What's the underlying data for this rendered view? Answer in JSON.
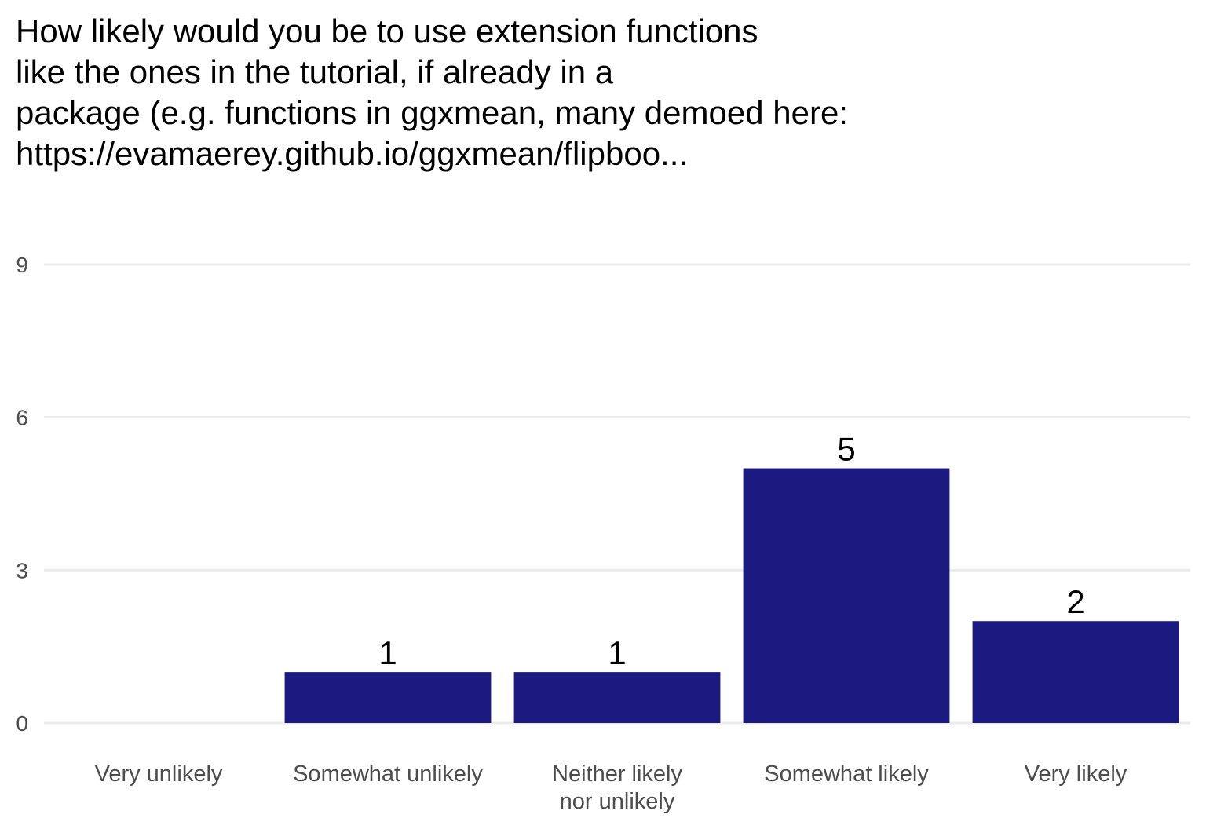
{
  "chart_data": {
    "type": "bar",
    "title_lines": [
      "How likely would you be to use extension functions",
      "like the ones in the tutorial, if already in a",
      "package (e.g. functions in ggxmean, many demoed here:",
      "https://evamaerey.github.io/ggxmean/flipboo..."
    ],
    "categories": [
      [
        "Very unlikely"
      ],
      [
        "Somewhat unlikely"
      ],
      [
        "Neither likely",
        "nor unlikely"
      ],
      [
        "Somewhat likely"
      ],
      [
        "Very likely"
      ]
    ],
    "values": [
      0,
      1,
      1,
      5,
      2
    ],
    "data_labels": [
      "",
      "1",
      "1",
      "5",
      "2"
    ],
    "xlabel": "",
    "ylabel": "",
    "ylim": [
      0,
      9
    ],
    "y_ticks": [
      0,
      3,
      6,
      9
    ],
    "grid": true,
    "bar_color": "#1a1a80",
    "grid_color": "#ebebeb"
  }
}
